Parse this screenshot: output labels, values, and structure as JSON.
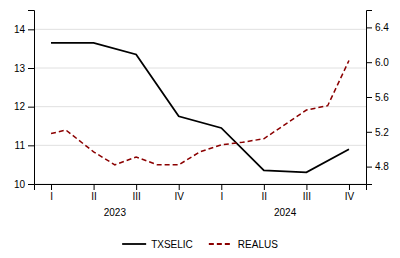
{
  "chart_data": {
    "type": "line",
    "xlim": [
      -0.4,
      7.4
    ],
    "xticks": [
      {
        "value": 0,
        "label": "I"
      },
      {
        "value": 1,
        "label": "II"
      },
      {
        "value": 2,
        "label": "III"
      },
      {
        "value": 3,
        "label": "IV"
      },
      {
        "value": 4,
        "label": "I"
      },
      {
        "value": 5,
        "label": "II"
      },
      {
        "value": 6,
        "label": "III"
      },
      {
        "value": 7,
        "label": "IV"
      }
    ],
    "ylim": [
      10,
      14.5
    ],
    "yticks": [
      10,
      11,
      12,
      13,
      14
    ],
    "y2lim": [
      4.6,
      6.6
    ],
    "y2ticks": [
      4.8,
      5.2,
      5.6,
      {
        "value": 6.0,
        "label": "6.0"
      },
      6.4
    ],
    "grid": true,
    "legend": "bottom",
    "annotations": [
      {
        "text": "2023",
        "x": 1.5
      },
      {
        "text": "2024",
        "x": 5.5
      }
    ],
    "series": [
      {
        "name": "TXSELIC",
        "color": "#000000",
        "line_style": "solid",
        "x": [
          0,
          1,
          2,
          3,
          4,
          5,
          6,
          7
        ],
        "values": [
          13.65,
          13.65,
          13.35,
          11.75,
          11.45,
          10.35,
          10.3,
          10.9
        ]
      },
      {
        "name": "REALUS",
        "color": "#8b0000",
        "line_style": "dashed",
        "axis": "y2",
        "x": [
          0,
          0.35,
          1,
          1.5,
          2,
          2.5,
          3,
          3.5,
          4,
          4.5,
          5,
          6,
          6.5,
          7
        ],
        "values": [
          5.18,
          5.22,
          4.97,
          4.82,
          4.91,
          4.82,
          4.82,
          4.97,
          5.05,
          5.08,
          5.12,
          5.45,
          5.5,
          6.02
        ]
      }
    ]
  }
}
